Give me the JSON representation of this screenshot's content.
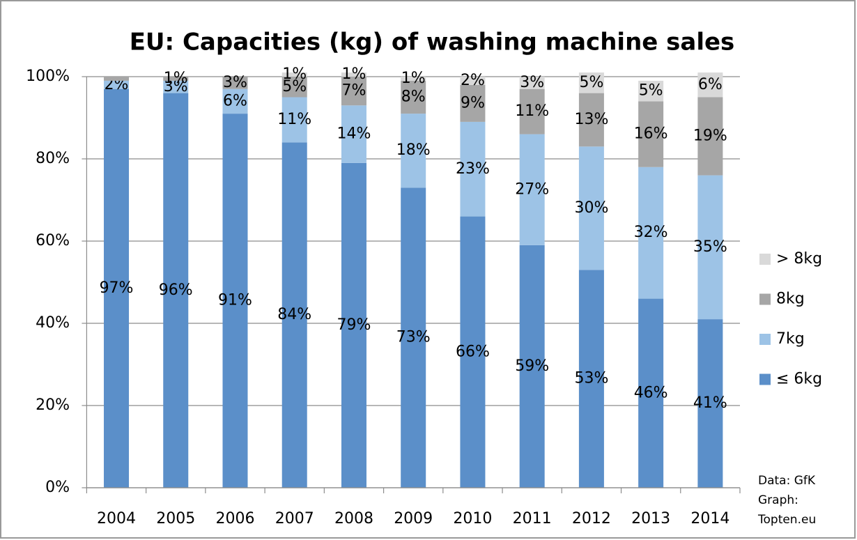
{
  "chart_data": {
    "type": "bar",
    "stacked": true,
    "title": "EU: Capacities (kg) of washing machine sales",
    "categories": [
      "2004",
      "2005",
      "2006",
      "2007",
      "2008",
      "2009",
      "2010",
      "2011",
      "2012",
      "2013",
      "2014"
    ],
    "series": [
      {
        "name": "≤ 6kg",
        "color": "#5b8fc9",
        "values": [
          97,
          96,
          91,
          84,
          79,
          73,
          66,
          59,
          53,
          46,
          41
        ],
        "value_labels": [
          "97%",
          "96%",
          "91%",
          "84%",
          "79%",
          "73%",
          "66%",
          "59%",
          "53%",
          "46%",
          "41%"
        ]
      },
      {
        "name": "7kg",
        "color": "#9dc3e6",
        "values": [
          2,
          3,
          6,
          11,
          14,
          18,
          23,
          27,
          30,
          32,
          35
        ],
        "value_labels": [
          "2%",
          "3%",
          "6%",
          "11%",
          "14%",
          "18%",
          "23%",
          "27%",
          "30%",
          "32%",
          "35%"
        ]
      },
      {
        "name": "8kg",
        "color": "#a6a6a6",
        "values": [
          1,
          1,
          3,
          5,
          7,
          8,
          9,
          11,
          13,
          16,
          19
        ],
        "value_labels": [
          null,
          "1%",
          "3%",
          "5%",
          "7%",
          "8%",
          "9%",
          "11%",
          "13%",
          "16%",
          "19%"
        ]
      },
      {
        "name": "> 8kg",
        "color": "#d9d9d9",
        "values": [
          0,
          0,
          0,
          1,
          1,
          1,
          2,
          3,
          5,
          5,
          6
        ],
        "value_labels": [
          null,
          null,
          null,
          "1%",
          "1%",
          "1%",
          "2%",
          "3%",
          "5%",
          "5%",
          "6%"
        ]
      }
    ],
    "ylim": [
      0,
      100
    ],
    "yticks": [
      {
        "value": 0,
        "label": "0%"
      },
      {
        "value": 20,
        "label": "20%"
      },
      {
        "value": 40,
        "label": "40%"
      },
      {
        "value": 60,
        "label": "60%"
      },
      {
        "value": 80,
        "label": "80%"
      },
      {
        "value": 100,
        "label": "100%"
      }
    ],
    "grid": true,
    "legend": "right",
    "note": [
      "Data: GfK",
      "Graph:",
      "Topten.eu"
    ]
  }
}
